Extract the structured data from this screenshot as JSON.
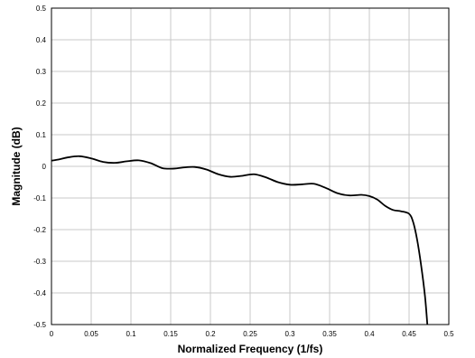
{
  "chart_data": {
    "type": "line",
    "title": "",
    "xlabel": "Normalized Frequency (1/fs)",
    "ylabel": "Magnitude (dB)",
    "xlim": [
      0,
      0.5
    ],
    "ylim": [
      -0.5,
      0.5
    ],
    "grid": true,
    "legend": "none",
    "line_color": "#000000",
    "x_ticks": [
      0,
      0.05,
      0.1,
      0.15,
      0.2,
      0.25,
      0.3,
      0.35,
      0.4,
      0.45,
      0.5
    ],
    "x_tick_labels": [
      "0",
      "0.05",
      "0.1",
      "0.15",
      "0.2",
      "0.25",
      "0.3",
      "0.35",
      "0.4",
      "0.45",
      "0.5"
    ],
    "y_ticks": [
      0.5,
      0.4,
      0.3,
      0.2,
      0.1,
      0,
      -0.1,
      -0.2,
      -0.3,
      -0.4,
      -0.5
    ],
    "y_tick_labels": [
      "0.5",
      "0.4",
      "0.3",
      "0.2",
      "0.1",
      "0",
      "-0.1",
      "-0.2",
      "-0.3",
      "-0.4",
      "-0.5"
    ],
    "series": [
      {
        "x": [
          0,
          0.01,
          0.02,
          0.035,
          0.05,
          0.065,
          0.08,
          0.095,
          0.11,
          0.125,
          0.14,
          0.155,
          0.165,
          0.18,
          0.195,
          0.21,
          0.225,
          0.24,
          0.255,
          0.27,
          0.285,
          0.3,
          0.315,
          0.33,
          0.345,
          0.36,
          0.375,
          0.39,
          0.4,
          0.41,
          0.42,
          0.43,
          0.44,
          0.45,
          0.455,
          0.46,
          0.465,
          0.47,
          0.473
        ],
        "y": [
          0.018,
          0.022,
          0.028,
          0.032,
          0.025,
          0.014,
          0.011,
          0.016,
          0.019,
          0.01,
          -0.006,
          -0.007,
          -0.004,
          -0.002,
          -0.01,
          -0.025,
          -0.033,
          -0.03,
          -0.025,
          -0.035,
          -0.05,
          -0.058,
          -0.057,
          -0.055,
          -0.068,
          -0.085,
          -0.092,
          -0.09,
          -0.094,
          -0.105,
          -0.125,
          -0.138,
          -0.142,
          -0.15,
          -0.175,
          -0.23,
          -0.31,
          -0.41,
          -0.5
        ]
      }
    ]
  }
}
